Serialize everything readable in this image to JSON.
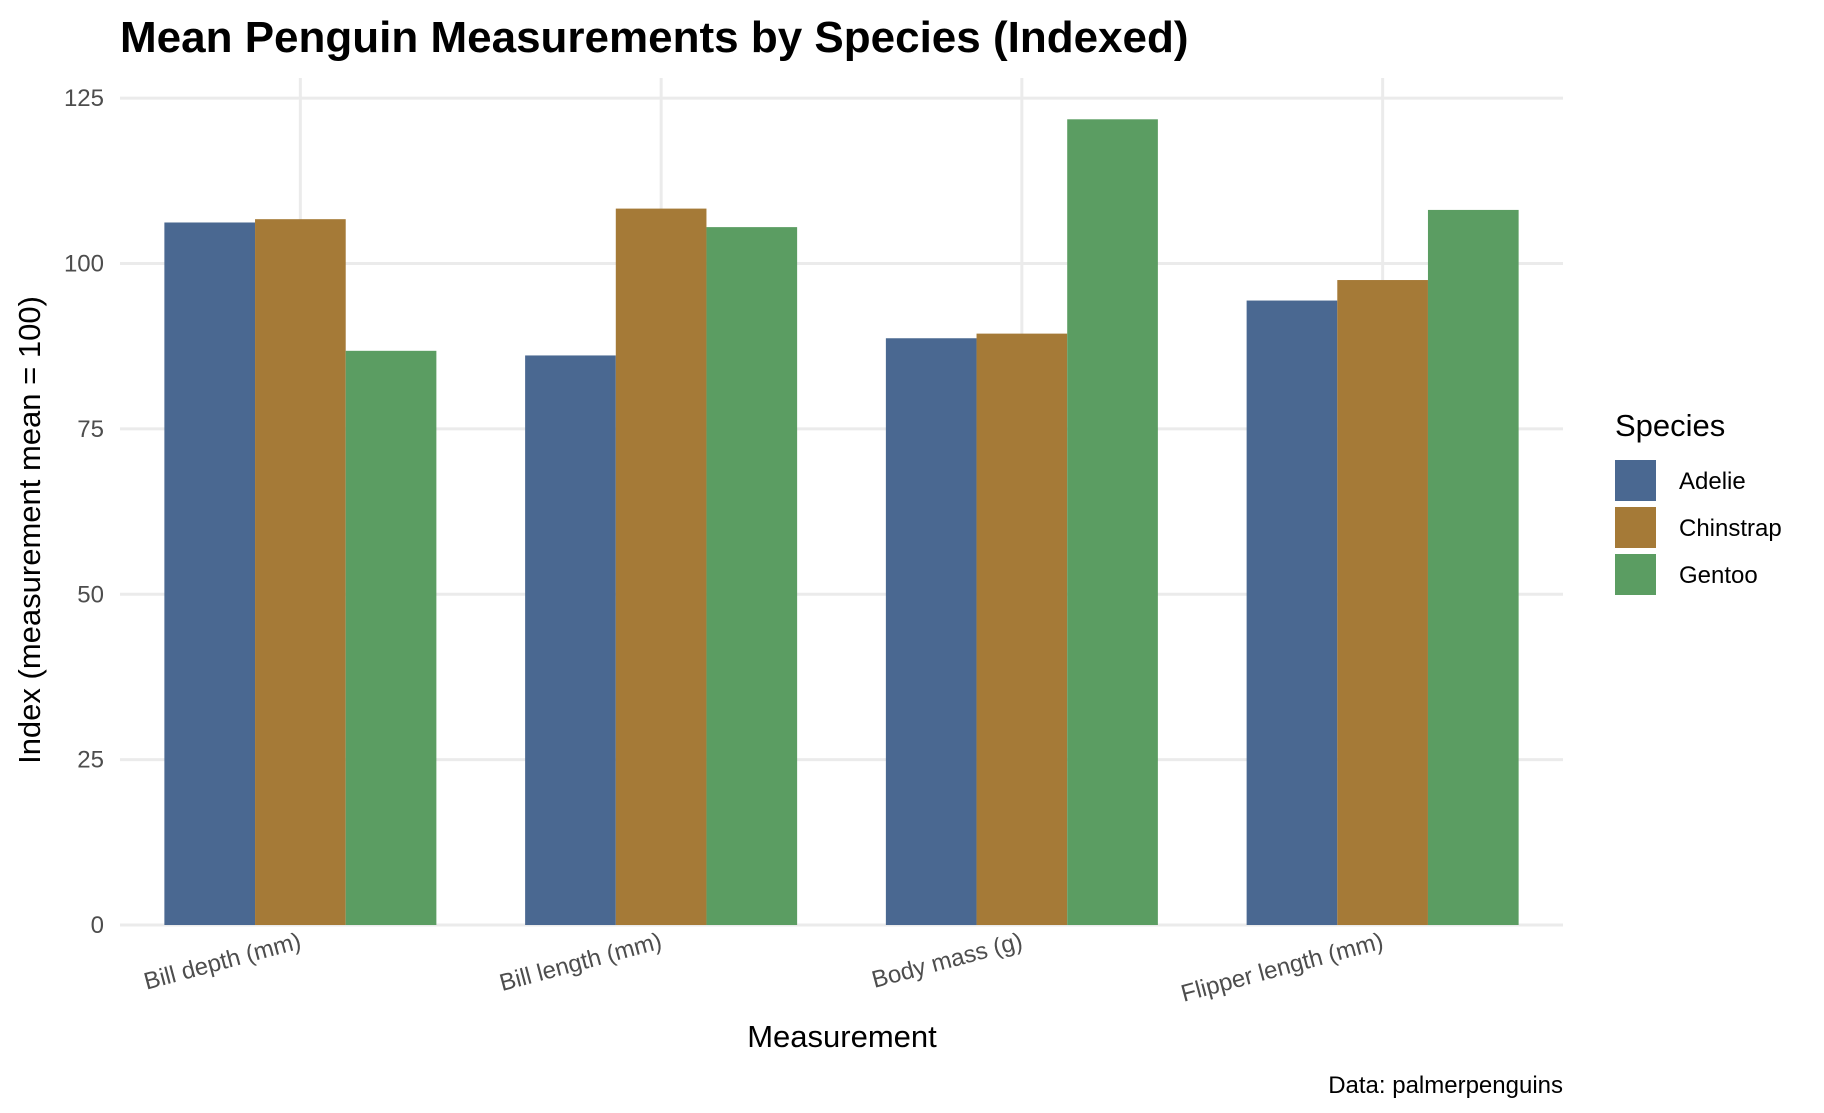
{
  "chart_data": {
    "type": "bar",
    "title": "Mean Penguin Measurements by Species (Indexed)",
    "xlabel": "Measurement",
    "ylabel": "Index (measurement mean = 100)",
    "caption": "Data: palmerpenguins",
    "categories": [
      "Bill depth (mm)",
      "Bill length (mm)",
      "Body mass (g)",
      "Flipper length (mm)"
    ],
    "ylim": [
      0,
      128
    ],
    "yticks": [
      0,
      25,
      50,
      75,
      100,
      125
    ],
    "ytick_labels": [
      "0",
      "25",
      "50",
      "75",
      "100",
      "125"
    ],
    "grid": true,
    "legend": {
      "title": "Species",
      "position": "right"
    },
    "series": [
      {
        "name": "Adelie",
        "color": "#4a6891",
        "values": [
          106.2,
          86.1,
          88.7,
          94.4
        ]
      },
      {
        "name": "Chinstrap",
        "color": "#a57a37",
        "values": [
          106.7,
          108.3,
          89.4,
          97.5
        ]
      },
      {
        "name": "Gentoo",
        "color": "#5b9d62",
        "values": [
          86.8,
          105.5,
          121.8,
          108.1
        ]
      }
    ]
  }
}
